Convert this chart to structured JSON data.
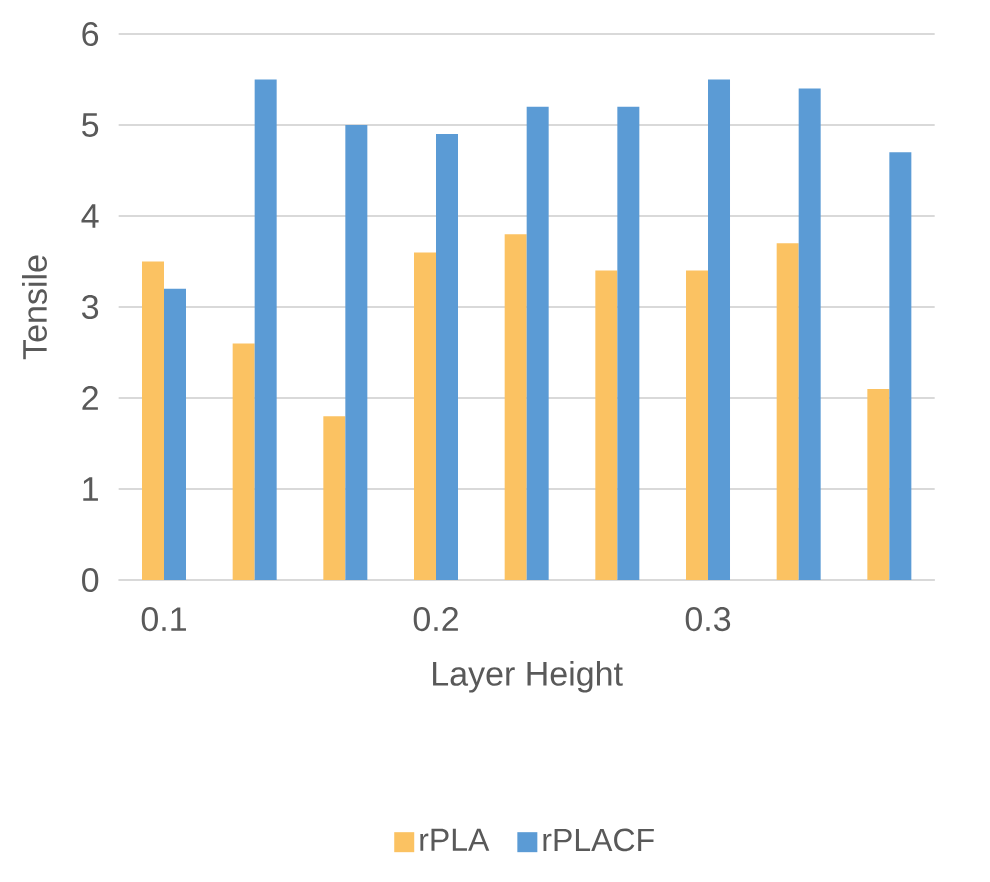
{
  "chart_data": {
    "type": "bar",
    "xlabel": "Layer Height",
    "ylabel": "Tensile",
    "categories": [
      "0.1",
      null,
      null,
      "0.2",
      null,
      null,
      "0.3",
      null,
      null
    ],
    "series": [
      {
        "name": "rPLA",
        "color": "#fbc262",
        "values": [
          3.5,
          2.6,
          1.8,
          3.6,
          3.8,
          3.4,
          3.4,
          3.7,
          2.1
        ]
      },
      {
        "name": "rPLACF",
        "color": "#5b9bd5",
        "values": [
          3.2,
          5.5,
          5.0,
          4.9,
          5.2,
          5.2,
          5.5,
          5.4,
          4.7
        ]
      }
    ],
    "ylim": [
      0,
      6
    ],
    "yticks": [
      0,
      1,
      2,
      3,
      4,
      5,
      6
    ],
    "grid": "y",
    "legend": "bottom"
  }
}
